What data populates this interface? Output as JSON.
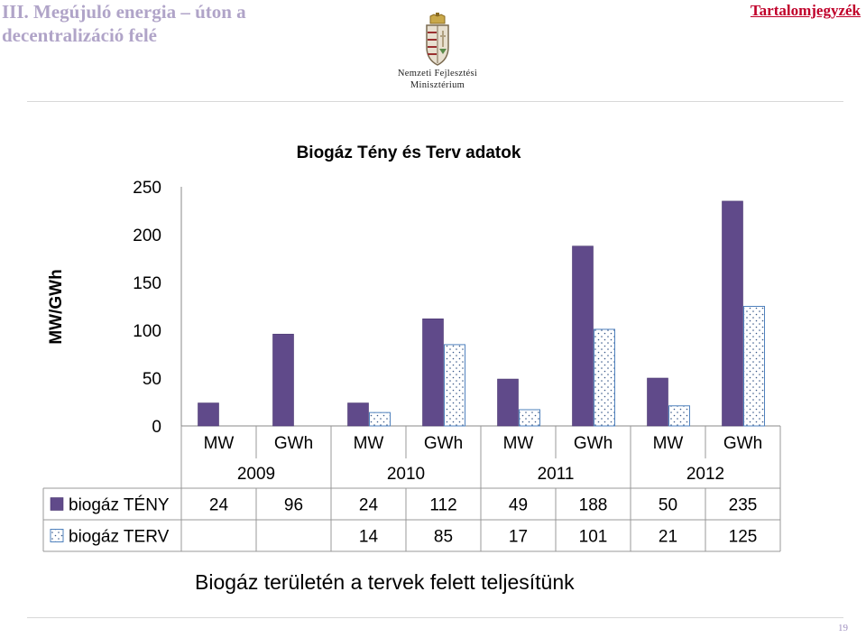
{
  "header": {
    "title_line1": "III. Megújuló energia – úton a",
    "title_line2": "decentralizáció felé",
    "toc_link": "Tartalomjegyzék"
  },
  "logo": {
    "line1": "Nemzeti Fejlesztési",
    "line2": "Minisztérium",
    "icon": "hungarian-coat-of-arms-icon"
  },
  "caption": "Biogáz területén a tervek felett teljesítünk",
  "page_number": "19",
  "colors": {
    "teny": "#604a8a",
    "terv_fill": "#ffffff",
    "terv_stroke": "#4f81bd",
    "terv_dot": "#3a5a8a"
  },
  "chart_data": {
    "type": "bar",
    "title": "Biogáz Tény és Terv adatok",
    "ylabel": "MW/GWh",
    "ylim": [
      0,
      250
    ],
    "yticks": [
      0,
      50,
      100,
      150,
      200,
      250
    ],
    "grid": false,
    "legend": "table-left",
    "categories": [
      "MW",
      "GWh",
      "MW",
      "GWh",
      "MW",
      "GWh",
      "MW",
      "GWh"
    ],
    "groups": [
      "2009",
      "2010",
      "2011",
      "2012"
    ],
    "series": [
      {
        "name": "biogáz TÉNY",
        "values": [
          24,
          96,
          24,
          112,
          49,
          188,
          50,
          235
        ],
        "labels": [
          "24",
          "96",
          "24",
          "112",
          "49",
          "188",
          "50",
          "235"
        ]
      },
      {
        "name": "biogáz TERV",
        "values": [
          null,
          null,
          14,
          85,
          17,
          101,
          21,
          125
        ],
        "labels": [
          "",
          "",
          "14",
          "85",
          "17",
          "101",
          "21",
          "125"
        ]
      }
    ]
  }
}
